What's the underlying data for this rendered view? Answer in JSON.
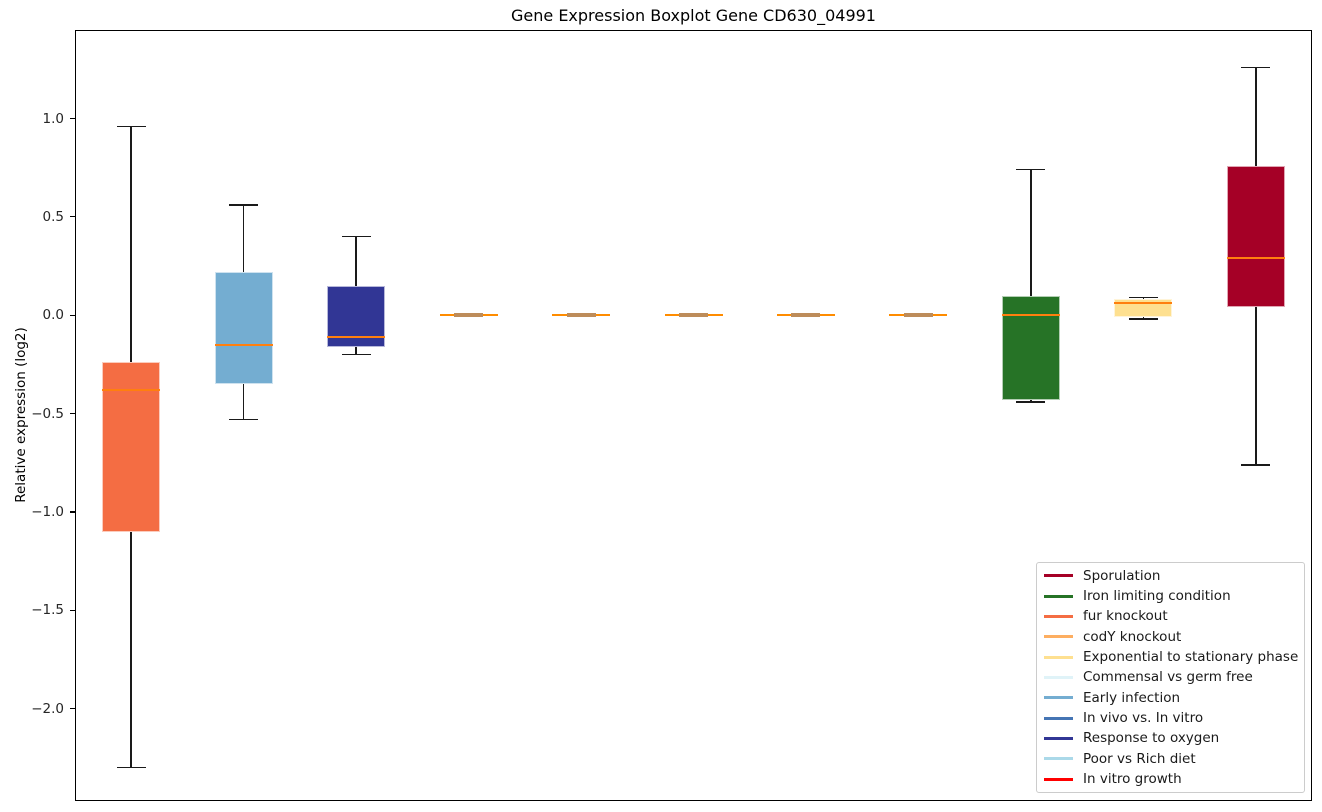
{
  "chart_data": {
    "type": "boxplot",
    "title": "Gene Expression Boxplot Gene CD630_04991",
    "xlabel": "",
    "ylabel": "Relative expression (log2)",
    "ylim": [
      -2.47,
      1.45
    ],
    "grid": false,
    "legend_position": "lower right",
    "median_color": "#ff7f0e",
    "whisker_color": "#1a1a1a",
    "yticks": [
      {
        "label": "1.0",
        "value": 1.0
      },
      {
        "label": "0.5",
        "value": 0.5
      },
      {
        "label": "0.0",
        "value": 0.0
      },
      {
        "label": "−0.5",
        "value": -0.5
      },
      {
        "label": "−1.0",
        "value": -1.0
      },
      {
        "label": "−1.5",
        "value": -1.5
      },
      {
        "label": "−2.0",
        "value": -2.0
      }
    ],
    "series": [
      {
        "name": "fur knockout",
        "color": "#f46d43",
        "whisker_low": -2.3,
        "q1": -1.1,
        "median": -0.38,
        "q3": -0.24,
        "whisker_high": 0.96
      },
      {
        "name": "Early infection",
        "color": "#74add1",
        "whisker_low": -0.53,
        "q1": -0.35,
        "median": -0.15,
        "q3": 0.22,
        "whisker_high": 0.56
      },
      {
        "name": "Response to oxygen",
        "color": "#313695",
        "whisker_low": -0.2,
        "q1": -0.16,
        "median": -0.11,
        "q3": 0.15,
        "whisker_high": 0.4
      },
      {
        "name": "codY knockout",
        "color": "#fdae61",
        "whisker_low": 0.0,
        "q1": 0.0,
        "median": 0.0,
        "q3": 0.0,
        "whisker_high": 0.0
      },
      {
        "name": "Commensal vs germ free",
        "color": "#e0f3f8",
        "whisker_low": 0.0,
        "q1": 0.0,
        "median": 0.0,
        "q3": 0.0,
        "whisker_high": 0.0
      },
      {
        "name": "In vivo vs. In vitro",
        "color": "#4575b4",
        "whisker_low": 0.0,
        "q1": 0.0,
        "median": 0.0,
        "q3": 0.0,
        "whisker_high": 0.0
      },
      {
        "name": "Poor vs Rich diet",
        "color": "#abd9e9",
        "whisker_low": 0.0,
        "q1": 0.0,
        "median": 0.0,
        "q3": 0.0,
        "whisker_high": 0.0
      },
      {
        "name": "In vitro growth",
        "color": "#ff0000",
        "whisker_low": 0.0,
        "q1": 0.0,
        "median": 0.0,
        "q3": 0.0,
        "whisker_high": 0.0
      },
      {
        "name": "Iron limiting condition",
        "color": "#267326",
        "whisker_low": -0.44,
        "q1": -0.43,
        "median": 0.0,
        "q3": 0.1,
        "whisker_high": 0.74
      },
      {
        "name": "Exponential to stationary phase",
        "color": "#fee090",
        "whisker_low": -0.02,
        "q1": -0.01,
        "median": 0.06,
        "q3": 0.08,
        "whisker_high": 0.09
      },
      {
        "name": "Sporulation",
        "color": "#a50026",
        "whisker_low": -0.76,
        "q1": 0.04,
        "median": 0.29,
        "q3": 0.76,
        "whisker_high": 1.26
      }
    ],
    "legend": [
      {
        "label": "Sporulation",
        "color": "#a50026"
      },
      {
        "label": "Iron limiting condition",
        "color": "#267326"
      },
      {
        "label": "fur knockout",
        "color": "#f46d43"
      },
      {
        "label": "codY knockout",
        "color": "#fdae61"
      },
      {
        "label": "Exponential to stationary phase",
        "color": "#fee090"
      },
      {
        "label": "Commensal vs germ free",
        "color": "#e0f3f8"
      },
      {
        "label": "Early infection",
        "color": "#74add1"
      },
      {
        "label": "In vivo vs. In vitro",
        "color": "#4575b4"
      },
      {
        "label": "Response to oxygen",
        "color": "#313695"
      },
      {
        "label": "Poor vs Rich diet",
        "color": "#abd9e9"
      },
      {
        "label": "In vitro growth",
        "color": "#ff0000"
      }
    ]
  }
}
